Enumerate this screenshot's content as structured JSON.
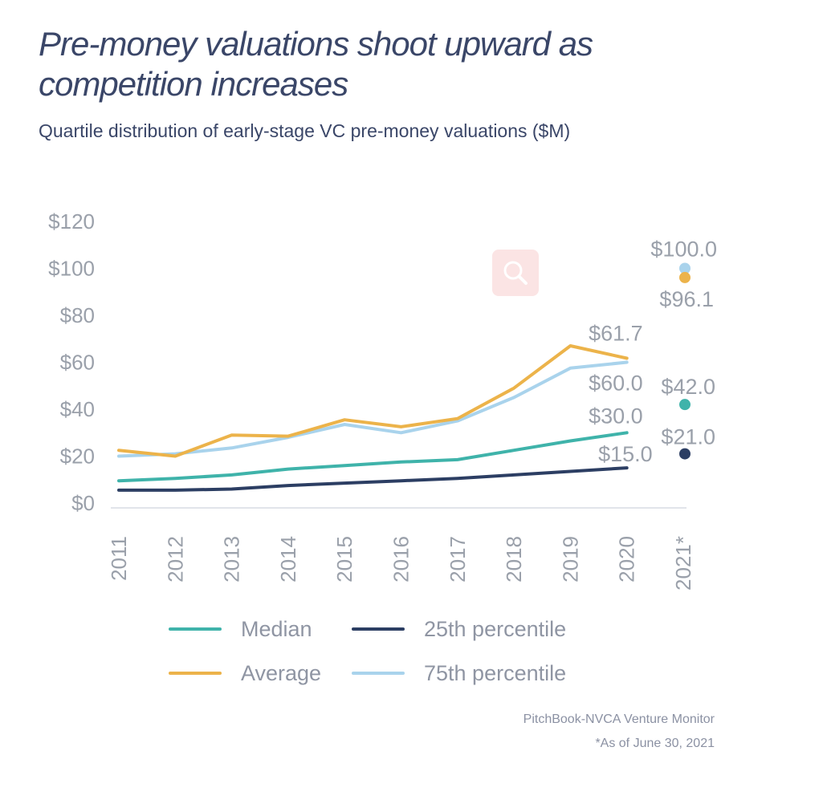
{
  "header": {
    "title": "Pre-money valuations shoot upward as competition increases",
    "subtitle": "Quartile distribution of early-stage VC pre-money valuations ($M)"
  },
  "footer": {
    "source": "PitchBook-NVCA Venture Monitor",
    "note": "*As of June 30, 2021"
  },
  "toolbar": {
    "zoom_icon": "magnifier-icon"
  },
  "chart_data": {
    "type": "line",
    "title": "Pre-money valuations shoot upward as competition increases",
    "subtitle": "Quartile distribution of early-stage VC pre-money valuations ($M)",
    "xlabel": "",
    "ylabel": "",
    "categories": [
      "2011",
      "2012",
      "2013",
      "2014",
      "2015",
      "2016",
      "2017",
      "2018",
      "2019",
      "2020"
    ],
    "x_extra_category": "2021*",
    "ylim": [
      0,
      120
    ],
    "y_ticks": [
      0,
      20,
      40,
      60,
      80,
      100,
      120
    ],
    "y_tick_labels": [
      "$0",
      "$20",
      "$40",
      "$60",
      "$80",
      "$100",
      "$120"
    ],
    "grid": false,
    "legend_position": "bottom",
    "series": [
      {
        "name": "Median",
        "color": "#3fb3aa",
        "values": [
          9.5,
          10.5,
          12.0,
          14.5,
          16.0,
          17.5,
          18.5,
          22.5,
          26.5,
          30.0
        ],
        "end_label": "$30.0",
        "point_2021": 42.0,
        "point_2021_label": "$42.0"
      },
      {
        "name": "25th percentile",
        "color": "#2c3e63",
        "values": [
          5.5,
          5.5,
          6.0,
          7.5,
          8.5,
          9.5,
          10.5,
          12.0,
          13.5,
          15.0
        ],
        "end_label": "$15.0",
        "point_2021": 21.0,
        "point_2021_label": "$21.0"
      },
      {
        "name": "Average",
        "color": "#ecb34a",
        "values": [
          22.5,
          20.0,
          29.0,
          28.5,
          35.5,
          32.5,
          36.0,
          49.0,
          67.0,
          61.7
        ],
        "end_label": "$61.7",
        "point_2021": 96.1,
        "point_2021_label": "$96.1"
      },
      {
        "name": "75th percentile",
        "color": "#a9d3ec",
        "values": [
          20.0,
          21.0,
          23.5,
          28.0,
          33.5,
          30.0,
          35.0,
          45.0,
          57.5,
          60.0
        ],
        "end_label": "$60.0",
        "point_2021": 100.0,
        "point_2021_label": "$100.0"
      }
    ]
  }
}
